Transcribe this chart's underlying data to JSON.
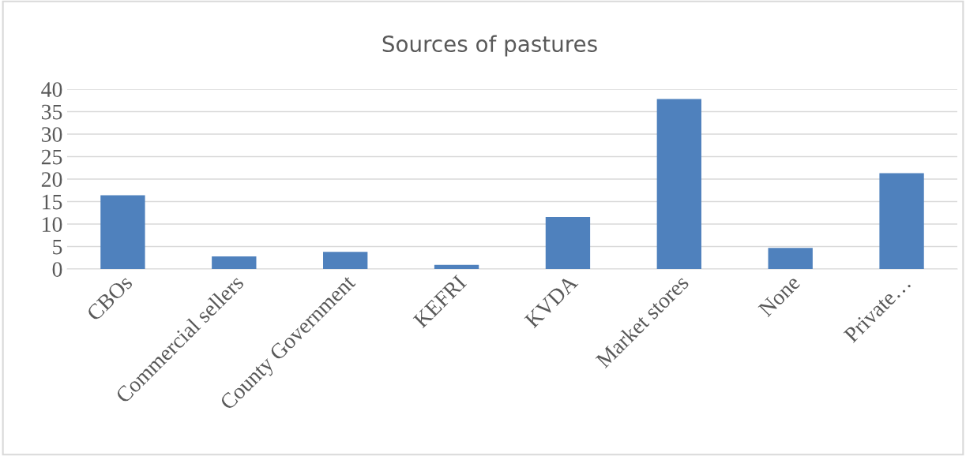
{
  "chart_data": {
    "type": "bar",
    "title": "Sources of pastures",
    "categories": [
      "CBOs",
      "Commercial sellers",
      "County Government",
      "KEFRI",
      "KVDA",
      "Market stores",
      "None",
      "Private…"
    ],
    "values": [
      16.4,
      2.8,
      3.8,
      0.9,
      11.6,
      37.8,
      4.7,
      21.3
    ],
    "color": "#4f81bd",
    "ylim": [
      0,
      40
    ],
    "yticks": [
      0,
      5,
      10,
      15,
      20,
      25,
      30,
      35,
      40
    ],
    "grid": "y"
  }
}
